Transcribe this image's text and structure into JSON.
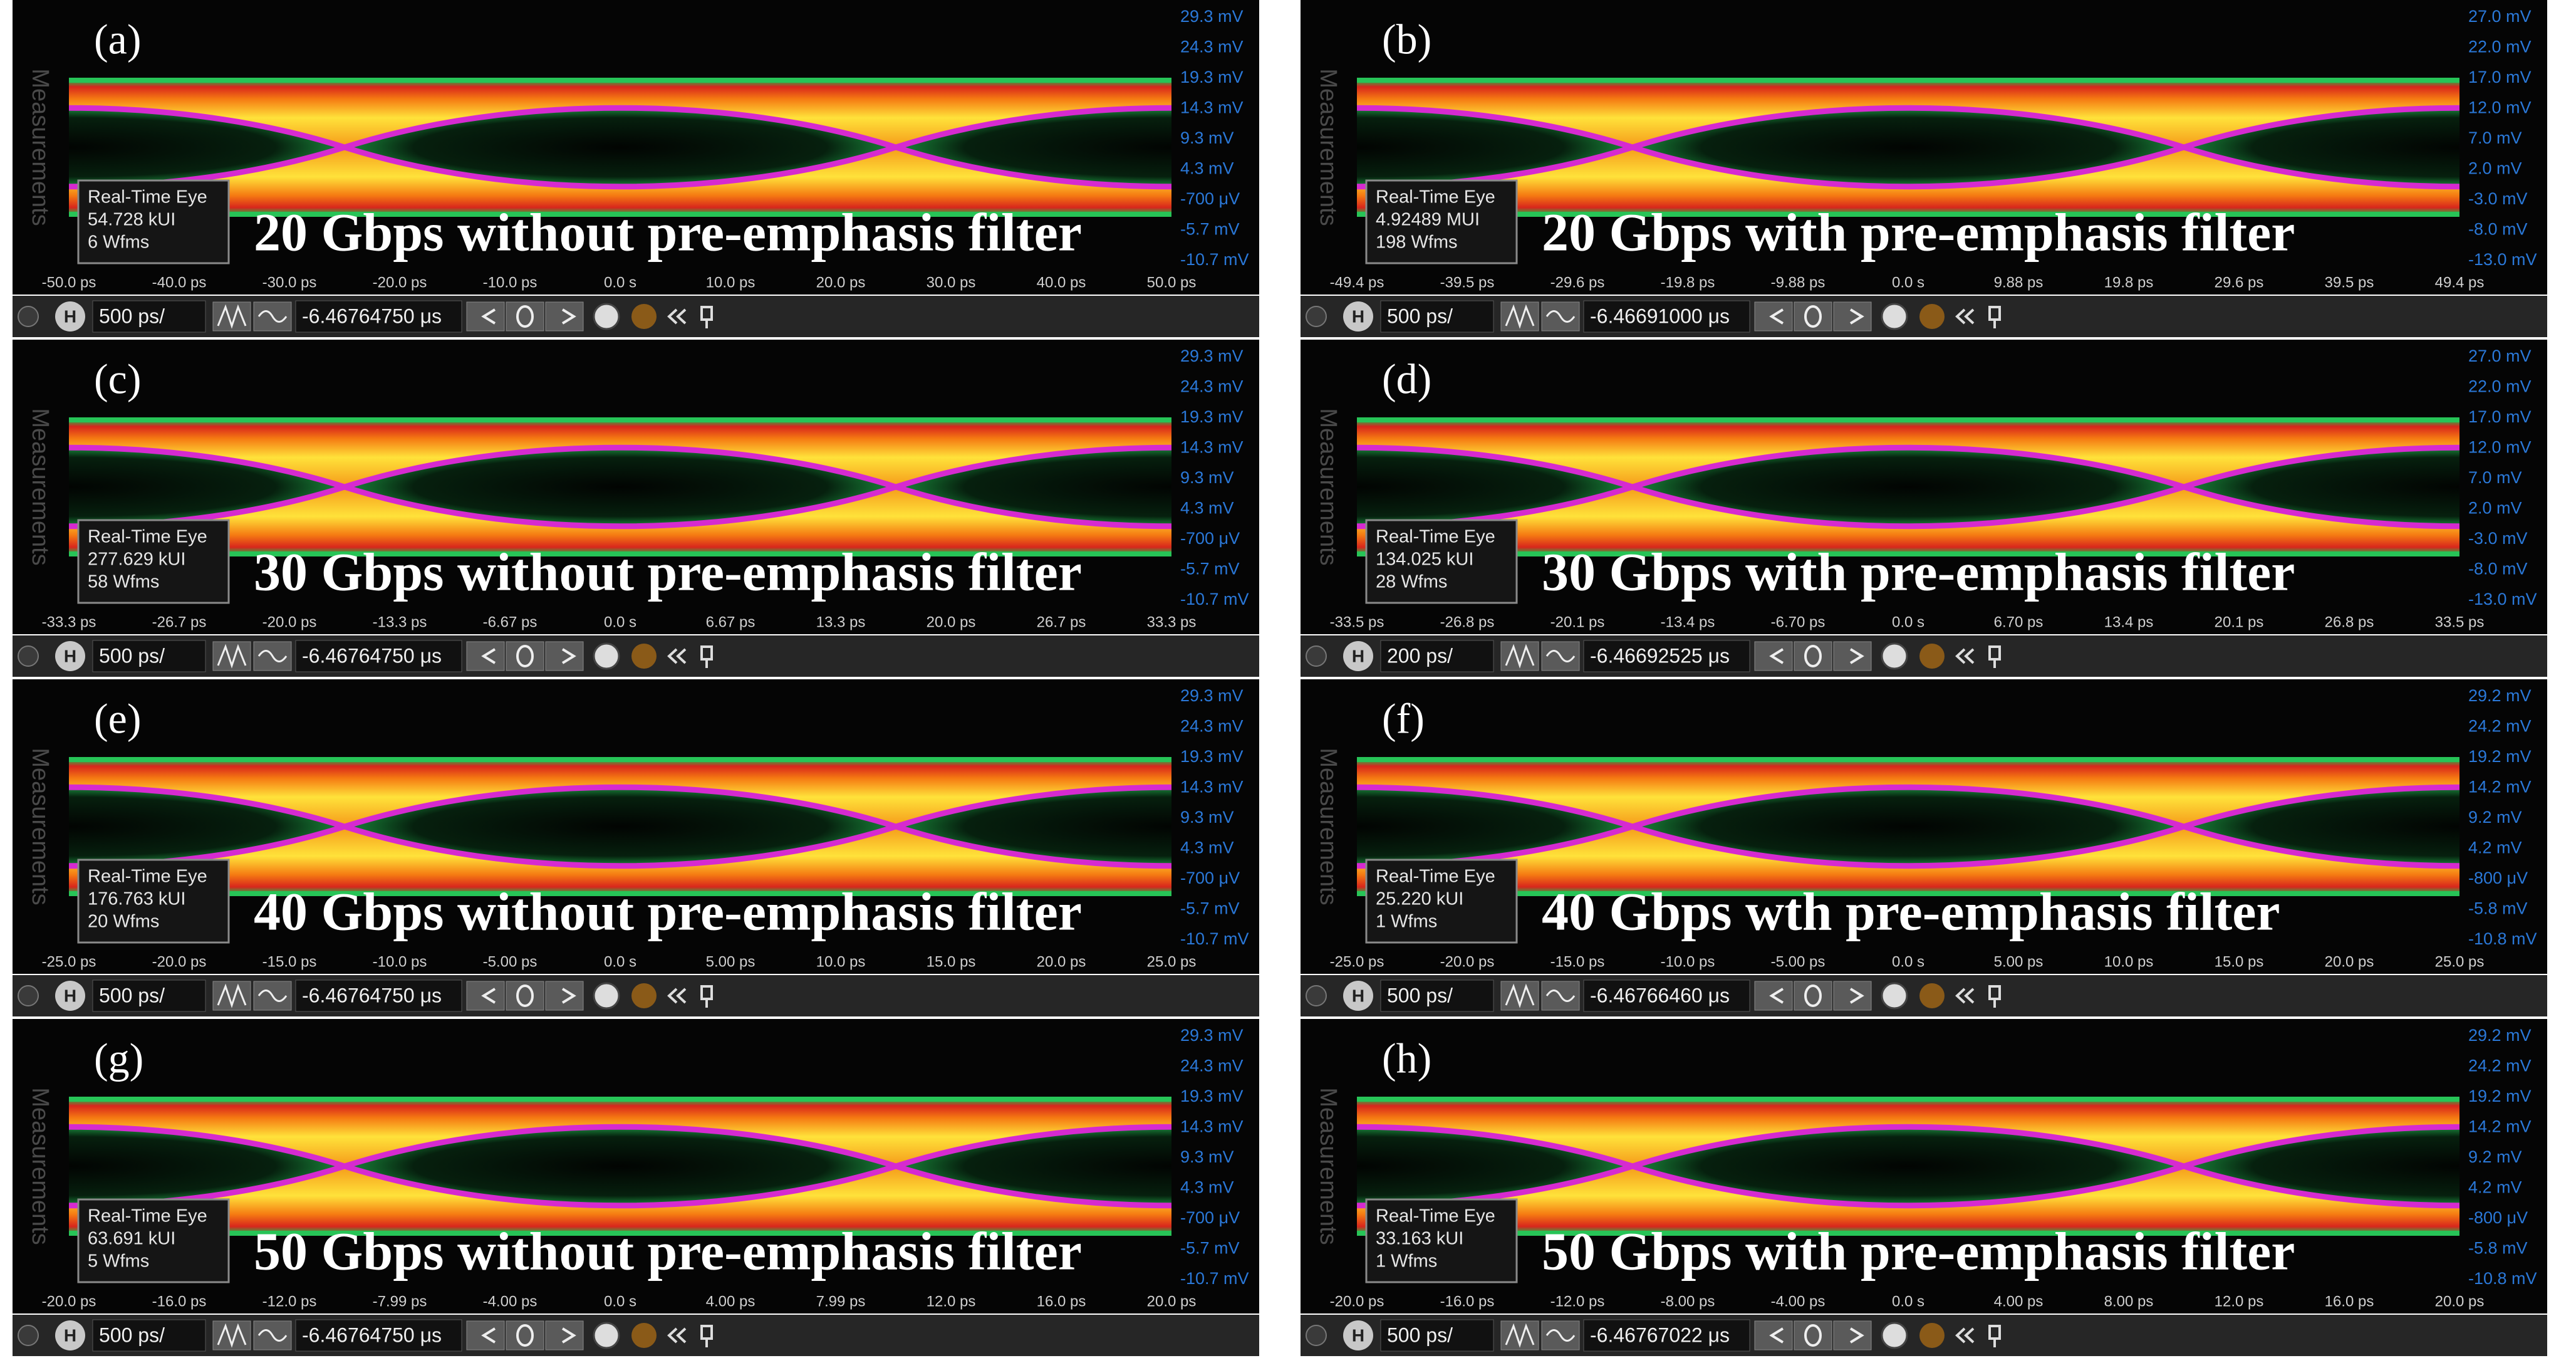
{
  "side_label": "Measurements",
  "h_button": "H",
  "panels": [
    {
      "label": "(a)",
      "caption": "20 Gbps without pre-emphasis filter",
      "info": [
        "Real-Time Eye",
        "54.728 kUI",
        "6 Wfms"
      ],
      "y_labels": [
        "29.3 mV",
        "24.3 mV",
        "19.3 mV",
        "14.3 mV",
        "9.3 mV",
        "4.3 mV",
        "-700 μV",
        "-5.7 mV",
        "-10.7 mV"
      ],
      "x_labels": [
        "-50.0 ps",
        "-40.0 ps",
        "-30.0 ps",
        "-20.0 ps",
        "-10.0 ps",
        "0.0 s",
        "10.0 ps",
        "20.0 ps",
        "30.0 ps",
        "40.0 ps",
        "50.0 ps"
      ],
      "timebase": "500 ps/",
      "position": "-6.46764750 μs"
    },
    {
      "label": "(b)",
      "caption": "20 Gbps with pre-emphasis filter",
      "info": [
        "Real-Time Eye",
        "4.92489 MUI",
        "198 Wfms"
      ],
      "y_labels": [
        "27.0 mV",
        "22.0 mV",
        "17.0 mV",
        "12.0 mV",
        "7.0 mV",
        "2.0 mV",
        "-3.0 mV",
        "-8.0 mV",
        "-13.0 mV"
      ],
      "x_labels": [
        "-49.4 ps",
        "-39.5 ps",
        "-29.6 ps",
        "-19.8 ps",
        "-9.88 ps",
        "0.0 s",
        "9.88 ps",
        "19.8 ps",
        "29.6 ps",
        "39.5 ps",
        "49.4 ps"
      ],
      "timebase": "500 ps/",
      "position": "-6.46691000 μs"
    },
    {
      "label": "(c)",
      "caption": "30 Gbps without pre-emphasis filter",
      "info": [
        "Real-Time Eye",
        "277.629 kUI",
        "58 Wfms"
      ],
      "y_labels": [
        "29.3 mV",
        "24.3 mV",
        "19.3 mV",
        "14.3 mV",
        "9.3 mV",
        "4.3 mV",
        "-700 μV",
        "-5.7 mV",
        "-10.7 mV"
      ],
      "x_labels": [
        "-33.3 ps",
        "-26.7 ps",
        "-20.0 ps",
        "-13.3 ps",
        "-6.67 ps",
        "0.0 s",
        "6.67 ps",
        "13.3 ps",
        "20.0 ps",
        "26.7 ps",
        "33.3 ps"
      ],
      "timebase": "500 ps/",
      "position": "-6.46764750 μs"
    },
    {
      "label": "(d)",
      "caption": "30 Gbps with pre-emphasis filter",
      "info": [
        "Real-Time Eye",
        "134.025 kUI",
        "28 Wfms"
      ],
      "y_labels": [
        "27.0 mV",
        "22.0 mV",
        "17.0 mV",
        "12.0 mV",
        "7.0 mV",
        "2.0 mV",
        "-3.0 mV",
        "-8.0 mV",
        "-13.0 mV"
      ],
      "x_labels": [
        "-33.5 ps",
        "-26.8 ps",
        "-20.1 ps",
        "-13.4 ps",
        "-6.70 ps",
        "0.0 s",
        "6.70 ps",
        "13.4 ps",
        "20.1 ps",
        "26.8 ps",
        "33.5 ps"
      ],
      "timebase": "200 ps/",
      "position": "-6.46692525 μs"
    },
    {
      "label": "(e)",
      "caption": "40 Gbps without pre-emphasis filter",
      "info": [
        "Real-Time Eye",
        "176.763 kUI",
        "20 Wfms"
      ],
      "y_labels": [
        "29.3 mV",
        "24.3 mV",
        "19.3 mV",
        "14.3 mV",
        "9.3 mV",
        "4.3 mV",
        "-700 μV",
        "-5.7 mV",
        "-10.7 mV"
      ],
      "x_labels": [
        "-25.0 ps",
        "-20.0 ps",
        "-15.0 ps",
        "-10.0 ps",
        "-5.00 ps",
        "0.0 s",
        "5.00 ps",
        "10.0 ps",
        "15.0 ps",
        "20.0 ps",
        "25.0 ps"
      ],
      "timebase": "500 ps/",
      "position": "-6.46764750 μs"
    },
    {
      "label": "(f)",
      "caption": "40 Gbps wth pre-emphasis filter",
      "info": [
        "Real-Time Eye",
        "25.220 kUI",
        "1 Wfms"
      ],
      "y_labels": [
        "29.2 mV",
        "24.2 mV",
        "19.2 mV",
        "14.2 mV",
        "9.2 mV",
        "4.2 mV",
        "-800 μV",
        "-5.8 mV",
        "-10.8 mV"
      ],
      "x_labels": [
        "-25.0 ps",
        "-20.0 ps",
        "-15.0 ps",
        "-10.0 ps",
        "-5.00 ps",
        "0.0 s",
        "5.00 ps",
        "10.0 ps",
        "15.0 ps",
        "20.0 ps",
        "25.0 ps"
      ],
      "timebase": "500 ps/",
      "position": "-6.46766460 μs"
    },
    {
      "label": "(g)",
      "caption": "50 Gbps without pre-emphasis filter",
      "info": [
        "Real-Time Eye",
        "63.691 kUI",
        "5 Wfms"
      ],
      "y_labels": [
        "29.3 mV",
        "24.3 mV",
        "19.3 mV",
        "14.3 mV",
        "9.3 mV",
        "4.3 mV",
        "-700 μV",
        "-5.7 mV",
        "-10.7 mV"
      ],
      "x_labels": [
        "-20.0 ps",
        "-16.0 ps",
        "-12.0 ps",
        "-7.99 ps",
        "-4.00 ps",
        "0.0 s",
        "4.00 ps",
        "7.99 ps",
        "12.0 ps",
        "16.0 ps",
        "20.0 ps"
      ],
      "timebase": "500 ps/",
      "position": "-6.46764750 μs"
    },
    {
      "label": "(h)",
      "caption": "50 Gbps with pre-emphasis filter",
      "info": [
        "Real-Time Eye",
        "33.163 kUI",
        "1 Wfms"
      ],
      "y_labels": [
        "29.2 mV",
        "24.2 mV",
        "19.2 mV",
        "14.2 mV",
        "9.2 mV",
        "4.2 mV",
        "-800 μV",
        "-5.8 mV",
        "-10.8 mV"
      ],
      "x_labels": [
        "-20.0 ps",
        "-16.0 ps",
        "-12.0 ps",
        "-8.00 ps",
        "-4.00 ps",
        "0.0 s",
        "4.00 ps",
        "8.00 ps",
        "12.0 ps",
        "16.0 ps",
        "20.0 ps"
      ],
      "timebase": "500 ps/",
      "position": "-6.46767022 μs"
    }
  ]
}
